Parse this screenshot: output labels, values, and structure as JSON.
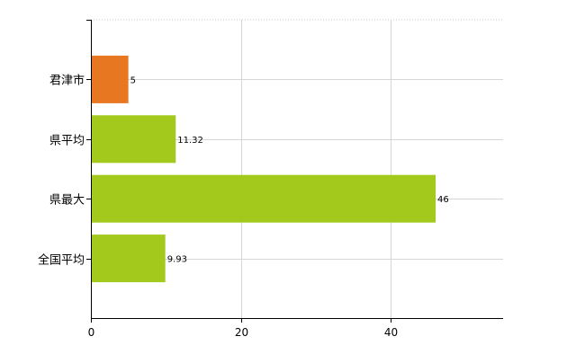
{
  "chart_data": {
    "type": "bar",
    "orientation": "horizontal",
    "categories": [
      "君津市",
      "県平均",
      "県最大",
      "全国平均"
    ],
    "values": [
      5,
      11.32,
      46,
      9.93
    ],
    "value_labels": [
      "5",
      "11.32",
      "46",
      "9.93"
    ],
    "bar_colors": [
      "#e87722",
      "#a3c91c",
      "#a3c91c",
      "#a3c91c"
    ],
    "xlim": [
      0,
      55
    ],
    "xticks": [
      0,
      20,
      40
    ],
    "xtick_labels": [
      "0",
      "20",
      "40"
    ],
    "grid": true,
    "title": "",
    "xlabel": "",
    "ylabel": ""
  }
}
